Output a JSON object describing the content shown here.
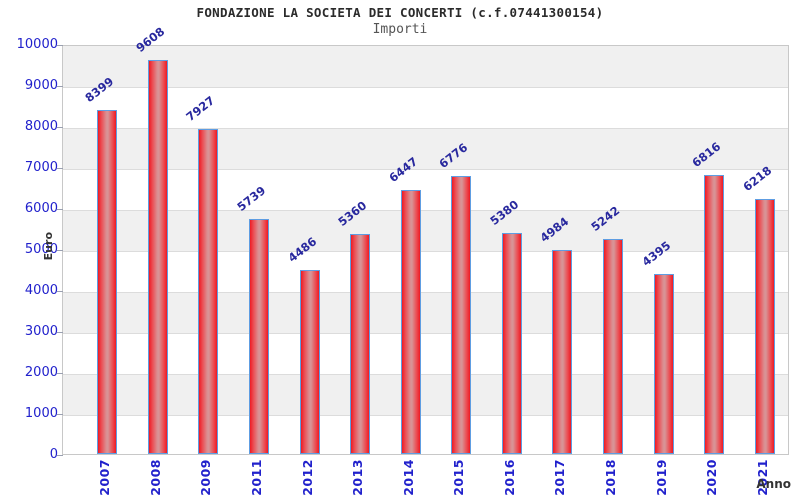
{
  "header": {
    "title": "FONDAZIONE LA SOCIETA DEI CONCERTI (c.f.07441300154)",
    "subtitle": "Importi"
  },
  "chart_data": {
    "type": "bar",
    "title": "FONDAZIONE LA SOCIETA DEI CONCERTI (c.f.07441300154)",
    "subtitle": "Importi",
    "xlabel": "Anno",
    "ylabel": "Euro",
    "categories": [
      "2007",
      "2008",
      "2009",
      "2011",
      "2012",
      "2013",
      "2014",
      "2015",
      "2016",
      "2017",
      "2018",
      "2019",
      "2020",
      "2021"
    ],
    "values": [
      8399,
      9608,
      7927,
      5739,
      4486,
      5360,
      6447,
      6776,
      5380,
      4984,
      5242,
      4395,
      6816,
      6218
    ],
    "ylim": [
      0,
      10000
    ],
    "ytick_interval": 1000,
    "yticks": [
      0,
      1000,
      2000,
      3000,
      4000,
      5000,
      6000,
      7000,
      8000,
      9000,
      10000
    ],
    "legend": "none",
    "grid": "alternating horizontal bands with gridlines every 1000",
    "value_labels_rotation_deg": -38,
    "x_labels_rotation_deg": -90,
    "colors": {
      "bar_edge_fill": "#ee1a23",
      "bar_center_fill": "#d79597",
      "bar_border": "#5e9de2",
      "tick_label_blue": "#2121cc",
      "value_label_navy": "#28289e",
      "band_gray": "#f0f0f0",
      "band_white": "#ffffff",
      "plot_border": "#c8c8c8",
      "title_color": "#2b2b2b",
      "subtitle_color": "#555555"
    }
  }
}
